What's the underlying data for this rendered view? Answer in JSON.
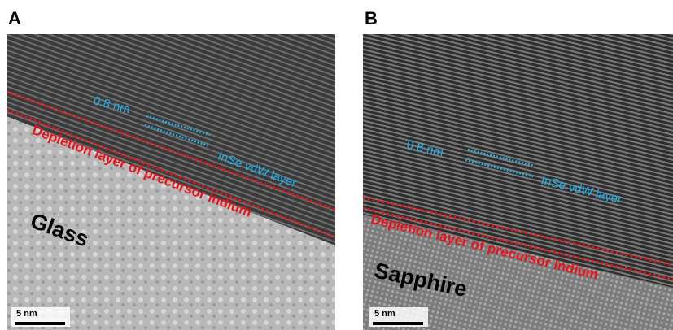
{
  "panels": [
    {
      "label": "A",
      "spacing": "0.8 nm",
      "layer": "InSe vdW layer",
      "depletion": "Depletion layer of precursor Indium",
      "substrate": "Glass",
      "scale": "5 nm"
    },
    {
      "label": "B",
      "spacing": "0.8 nm",
      "layer": "InSe vdW layer",
      "depletion": "Depletion layer of precursor Indium",
      "substrate": "Sapphire",
      "scale": "5 nm"
    }
  ]
}
